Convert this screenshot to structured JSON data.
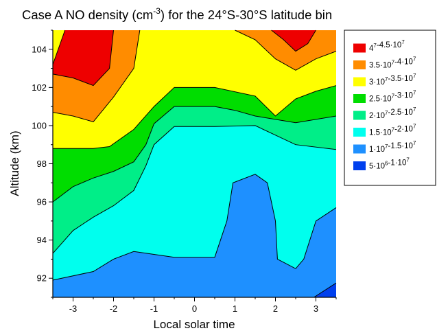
{
  "chart_data": {
    "type": "contour",
    "title": {
      "prefix": "Case A NO density (cm",
      "exponent": "-3",
      "suffix": ") for the 24°S-30°S latitude bin"
    },
    "xlabel": "Local solar time",
    "ylabel": "Altitude (km)",
    "xlim": [
      -3.5,
      3.5
    ],
    "ylim": [
      91,
      105
    ],
    "x_ticks": [
      -3,
      -2,
      -1,
      0,
      1,
      2,
      3
    ],
    "y_ticks": [
      92,
      94,
      96,
      98,
      100,
      102,
      104
    ],
    "legend_position": "right",
    "levels": [
      {
        "name": "4·10^7-4.5·10^7",
        "color": "#ee0000",
        "parts": [
          {
            "b": "4",
            "e": "7"
          },
          {
            "t": "-4.5·"
          },
          {
            "b": "10",
            "e": "7"
          }
        ]
      },
      {
        "name": "3.5·10^7-4·10^7",
        "color": "#ff8c00",
        "parts": [
          {
            "t": "3.5·"
          },
          {
            "b": "10",
            "e": "7"
          },
          {
            "t": "-4·"
          },
          {
            "b": "10",
            "e": "7"
          }
        ]
      },
      {
        "name": "3·10^7-3.5·10^7",
        "color": "#ffff00",
        "parts": [
          {
            "t": "3·"
          },
          {
            "b": "10",
            "e": "7"
          },
          {
            "t": "-3.5·"
          },
          {
            "b": "10",
            "e": "7"
          }
        ]
      },
      {
        "name": "2.5·10^7-3·10^7",
        "color": "#00dd00",
        "parts": [
          {
            "t": "2.5·"
          },
          {
            "b": "10",
            "e": "7"
          },
          {
            "t": "-3·"
          },
          {
            "b": "10",
            "e": "7"
          }
        ]
      },
      {
        "name": "2·10^7-2.5·10^7",
        "color": "#00ee88",
        "parts": [
          {
            "t": "2·"
          },
          {
            "b": "10",
            "e": "7"
          },
          {
            "t": "-2.5·"
          },
          {
            "b": "10",
            "e": "7"
          }
        ]
      },
      {
        "name": "1.5·10^7-2·10^7",
        "color": "#00ffee",
        "parts": [
          {
            "t": "1.5·"
          },
          {
            "b": "10",
            "e": "7"
          },
          {
            "t": "-2·"
          },
          {
            "b": "10",
            "e": "7"
          }
        ]
      },
      {
        "name": "1·10^7-1.5·10^7",
        "color": "#1e90ff",
        "parts": [
          {
            "t": "1·"
          },
          {
            "b": "10",
            "e": "7"
          },
          {
            "t": "-1.5·"
          },
          {
            "b": "10",
            "e": "7"
          }
        ]
      },
      {
        "name": "5·10^6-1·10^7",
        "color": "#0040ee",
        "parts": [
          {
            "t": "5·"
          },
          {
            "b": "10",
            "e": "6"
          },
          {
            "t": "-1·"
          },
          {
            "b": "10",
            "e": "7"
          }
        ]
      }
    ],
    "contour_lines": [
      {
        "level": "1·10^7",
        "points": [
          [
            2.95,
            91
          ],
          [
            3.5,
            91.75
          ]
        ]
      },
      {
        "level": "1.5·10^7",
        "points": [
          [
            -3.5,
            91.9
          ],
          [
            -2.5,
            92.35
          ],
          [
            -2,
            93.0
          ],
          [
            -1.5,
            93.4
          ],
          [
            -0.5,
            93.1
          ],
          [
            0.5,
            93.1
          ],
          [
            0.8,
            95.0
          ],
          [
            0.95,
            97.0
          ],
          [
            1.5,
            97.45
          ],
          [
            1.8,
            97.0
          ],
          [
            2.0,
            95.0
          ],
          [
            2.05,
            93.0
          ],
          [
            2.5,
            92.5
          ],
          [
            2.7,
            93.0
          ],
          [
            3.0,
            95.0
          ],
          [
            3.5,
            95.7
          ]
        ]
      },
      {
        "level": "2·10^7",
        "points": [
          [
            -3.5,
            93.3
          ],
          [
            -3.0,
            94.5
          ],
          [
            -2.5,
            95.2
          ],
          [
            -2,
            95.8
          ],
          [
            -1.5,
            96.6
          ],
          [
            -1.2,
            97.9
          ],
          [
            -1.0,
            99.0
          ],
          [
            -0.5,
            99.95
          ],
          [
            0.5,
            99.95
          ],
          [
            1.5,
            100.0
          ],
          [
            2.5,
            99.0
          ],
          [
            3.5,
            98.75
          ]
        ]
      },
      {
        "level": "2.5·10^7",
        "points": [
          [
            -3.5,
            96.0
          ],
          [
            -3.0,
            96.8
          ],
          [
            -2.5,
            97.25
          ],
          [
            -2,
            97.6
          ],
          [
            -1.5,
            98.1
          ],
          [
            -1.2,
            99.0
          ],
          [
            -1.0,
            100.1
          ],
          [
            -0.5,
            101.0
          ],
          [
            0.5,
            101.0
          ],
          [
            1.0,
            100.8
          ],
          [
            1.5,
            100.5
          ],
          [
            2.5,
            100.15
          ],
          [
            3.5,
            100.5
          ]
        ]
      },
      {
        "level": "3·10^7",
        "points": [
          [
            -3.5,
            98.8
          ],
          [
            -3.0,
            98.8
          ],
          [
            -2.5,
            98.8
          ],
          [
            -2.1,
            98.9
          ],
          [
            -1.5,
            99.8
          ],
          [
            -1.0,
            101.0
          ],
          [
            -0.5,
            102.0
          ],
          [
            0.5,
            102.0
          ],
          [
            1.5,
            101.55
          ],
          [
            2.0,
            100.5
          ],
          [
            2.5,
            101.4
          ],
          [
            3.0,
            101.8
          ],
          [
            3.5,
            102.1
          ]
        ]
      },
      {
        "level": "3.5·10^7",
        "points": [
          [
            -3.5,
            100.7
          ],
          [
            -3.0,
            100.5
          ],
          [
            -2.5,
            100.2
          ],
          [
            -2.0,
            101.5
          ],
          [
            -1.5,
            103.0
          ],
          [
            -1.35,
            105.0
          ]
        ]
      },
      {
        "level": "3.5·10^7",
        "points": [
          [
            1.0,
            105.0
          ],
          [
            1.5,
            104.5
          ],
          [
            2.0,
            103.5
          ],
          [
            2.5,
            102.9
          ],
          [
            3.0,
            103.5
          ],
          [
            3.5,
            103.9
          ]
        ]
      },
      {
        "level": "4·10^7",
        "points": [
          [
            -3.5,
            102.7
          ],
          [
            -3.0,
            102.5
          ],
          [
            -2.5,
            102.1
          ],
          [
            -2.1,
            103.0
          ],
          [
            -2.0,
            105.0
          ]
        ]
      },
      {
        "level": "4·10^7",
        "points": [
          [
            -3.5,
            103.2
          ],
          [
            -3.2,
            105.0
          ]
        ]
      },
      {
        "level": "4·10^7",
        "points": [
          [
            1.9,
            105.0
          ],
          [
            2.2,
            104.5
          ],
          [
            2.5,
            103.9
          ],
          [
            2.8,
            104.3
          ],
          [
            3.0,
            105.0
          ]
        ]
      }
    ],
    "regions": [
      {
        "level_index": 1,
        "points": [
          [
            -3.5,
            105
          ],
          [
            -3.5,
            100.7
          ],
          [
            -3.0,
            100.5
          ],
          [
            -2.5,
            100.2
          ],
          [
            -2.0,
            101.5
          ],
          [
            -1.5,
            103.0
          ],
          [
            -1.35,
            105.0
          ]
        ]
      },
      {
        "level_index": 0,
        "points": [
          [
            -3.2,
            105
          ],
          [
            -3.5,
            103.2
          ],
          [
            -3.5,
            102.7
          ],
          [
            -3.0,
            102.5
          ],
          [
            -2.5,
            102.1
          ],
          [
            -2.1,
            103.0
          ],
          [
            -2.0,
            105.0
          ]
        ]
      },
      {
        "level_index": 2,
        "points": [
          [
            -3.5,
            105
          ],
          [
            -3.5,
            103.2
          ],
          [
            -3.2,
            105.0
          ]
        ]
      },
      {
        "level_index": 1,
        "points": [
          [
            1.0,
            105.0
          ],
          [
            1.5,
            104.5
          ],
          [
            2.0,
            103.5
          ],
          [
            2.5,
            102.9
          ],
          [
            3.0,
            103.5
          ],
          [
            3.5,
            103.9
          ],
          [
            3.5,
            105
          ]
        ]
      },
      {
        "level_index": 0,
        "points": [
          [
            1.9,
            105.0
          ],
          [
            2.2,
            104.5
          ],
          [
            2.5,
            103.9
          ],
          [
            2.8,
            104.3
          ],
          [
            3.0,
            105.0
          ]
        ]
      }
    ]
  }
}
